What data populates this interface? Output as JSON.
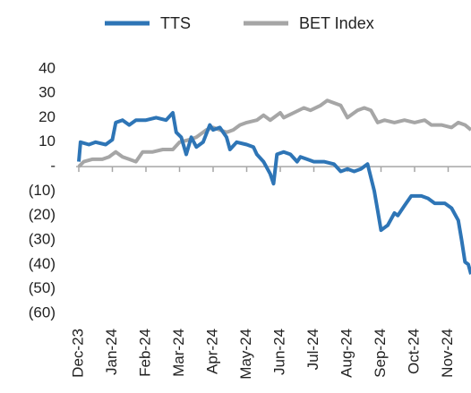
{
  "chart_data": {
    "type": "line",
    "series": [
      {
        "name": "TTS",
        "color": "#2e75b6",
        "x": [
          0,
          0.05,
          0.3,
          0.5,
          0.8,
          1.0,
          1.1,
          1.3,
          1.5,
          1.7,
          2.0,
          2.3,
          2.6,
          2.8,
          2.9,
          3.05,
          3.2,
          3.35,
          3.5,
          3.7,
          3.9,
          4.0,
          4.2,
          4.4,
          4.5,
          4.7,
          5.0,
          5.2,
          5.3,
          5.5,
          5.7,
          5.8,
          5.9,
          6.1,
          6.3,
          6.5,
          6.6,
          6.8,
          7.0,
          7.3,
          7.6,
          7.8,
          8.0,
          8.2,
          8.4,
          8.6,
          8.8,
          8.9,
          9.0,
          9.2,
          9.4,
          9.5,
          9.7,
          9.9,
          10.2,
          10.4,
          10.6,
          10.9,
          11.1,
          11.3,
          11.4,
          11.5,
          11.6,
          11.68
        ],
        "values": [
          2,
          10,
          9,
          10,
          9,
          11,
          18,
          19,
          17,
          19,
          19,
          20,
          19,
          22,
          14,
          12,
          5,
          12,
          8,
          10,
          17,
          15,
          16,
          12,
          7,
          10,
          9,
          8,
          5,
          2,
          -3,
          -7,
          5,
          6,
          5,
          2,
          4,
          3,
          2,
          2,
          1,
          -2,
          -1,
          -2,
          -1,
          1,
          -10,
          -18,
          -26,
          -24,
          -19,
          -20,
          -16,
          -12,
          -12,
          -13,
          -15,
          -15,
          -17,
          -22,
          -30,
          -39,
          -40,
          -44
        ]
      },
      {
        "name": "BET Index",
        "color": "#a6a6a6",
        "x": [
          0,
          0.15,
          0.4,
          0.7,
          0.9,
          1.1,
          1.3,
          1.5,
          1.7,
          1.9,
          2.2,
          2.5,
          2.8,
          3.0,
          3.3,
          3.5,
          3.8,
          4.0,
          4.2,
          4.4,
          4.6,
          4.8,
          5.0,
          5.3,
          5.5,
          5.7,
          6.0,
          6.1,
          6.4,
          6.7,
          6.9,
          7.2,
          7.4,
          7.6,
          7.8,
          8.0,
          8.3,
          8.5,
          8.7,
          8.9,
          9.1,
          9.4,
          9.7,
          10.0,
          10.3,
          10.5,
          10.8,
          11.1,
          11.3,
          11.5,
          11.68
        ],
        "values": [
          0,
          2,
          3,
          3,
          4,
          6,
          4,
          3,
          2,
          6,
          6,
          7,
          7,
          10,
          11,
          12,
          15,
          16,
          15,
          14,
          15,
          17,
          18,
          19,
          21,
          19,
          22,
          20,
          22,
          24,
          23,
          25,
          27,
          26,
          25,
          20,
          23,
          24,
          23,
          18,
          19,
          18,
          19,
          18,
          19,
          17,
          17,
          16,
          18,
          17,
          15
        ]
      }
    ],
    "xlim": [
      0,
      11.68
    ],
    "xticks": [
      {
        "value": 0,
        "label": "Dec-23"
      },
      {
        "value": 1,
        "label": "Jan-24"
      },
      {
        "value": 2,
        "label": "Feb-24"
      },
      {
        "value": 3,
        "label": "Mar-24"
      },
      {
        "value": 4,
        "label": "Apr-24"
      },
      {
        "value": 5,
        "label": "May-24"
      },
      {
        "value": 6,
        "label": "Jun-24"
      },
      {
        "value": 7,
        "label": "Jul-24"
      },
      {
        "value": 8,
        "label": "Aug-24"
      },
      {
        "value": 9,
        "label": "Sep-24"
      },
      {
        "value": 10,
        "label": "Oct-24"
      },
      {
        "value": 11,
        "label": "Nov-24"
      }
    ],
    "ylim": [
      -60,
      40
    ],
    "yticks": [
      40,
      30,
      20,
      10,
      {
        "value": 0,
        "label": "-"
      },
      {
        "value": -10,
        "label": "(10)"
      },
      {
        "value": -20,
        "label": "(20)"
      },
      {
        "value": -30,
        "label": "(30)"
      },
      {
        "value": -40,
        "label": "(40)"
      },
      {
        "value": -50,
        "label": "(50)"
      },
      {
        "value": -60,
        "label": "(60)"
      }
    ],
    "legend": "top"
  }
}
